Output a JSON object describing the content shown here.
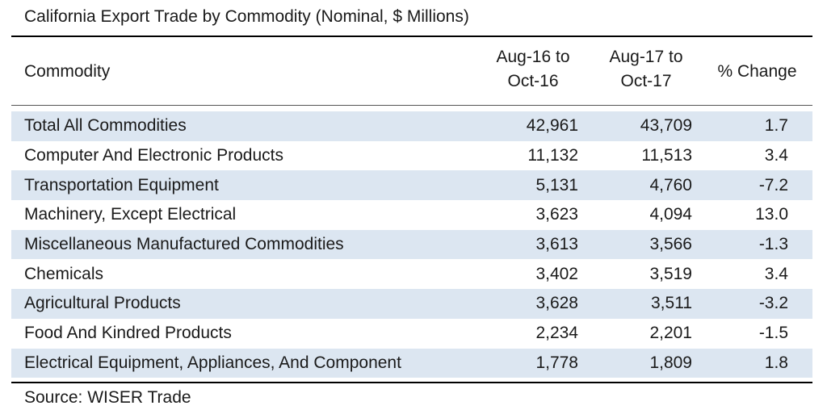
{
  "title": "California Export Trade by Commodity (Nominal, $ Millions)",
  "source": "Source: WISER Trade",
  "colors": {
    "row_shade": "#dce6f1",
    "rule": "#000000"
  },
  "chart_data": {
    "type": "table",
    "title": "California Export Trade by Commodity (Nominal, $ Millions)",
    "columns": {
      "commodity": "Commodity",
      "period1_line1": "Aug-16 to",
      "period1_line2": "Oct-16",
      "period2_line1": "Aug-17 to",
      "period2_line2": "Oct-17",
      "change": "% Change"
    },
    "rows": [
      {
        "commodity": "Total All Commodities",
        "aug16_oct16": "42,961",
        "aug17_oct17": "43,709",
        "pct_change": "1.7"
      },
      {
        "commodity": "Computer And Electronic Products",
        "aug16_oct16": "11,132",
        "aug17_oct17": "11,513",
        "pct_change": "3.4"
      },
      {
        "commodity": "Transportation Equipment",
        "aug16_oct16": "5,131",
        "aug17_oct17": "4,760",
        "pct_change": "-7.2"
      },
      {
        "commodity": "Machinery, Except Electrical",
        "aug16_oct16": "3,623",
        "aug17_oct17": "4,094",
        "pct_change": "13.0"
      },
      {
        "commodity": "Miscellaneous Manufactured Commodities",
        "aug16_oct16": "3,613",
        "aug17_oct17": "3,566",
        "pct_change": "-1.3"
      },
      {
        "commodity": "Chemicals",
        "aug16_oct16": "3,402",
        "aug17_oct17": "3,519",
        "pct_change": "3.4"
      },
      {
        "commodity": "Agricultural Products",
        "aug16_oct16": "3,628",
        "aug17_oct17": "3,511",
        "pct_change": "-3.2"
      },
      {
        "commodity": "Food And Kindred Products",
        "aug16_oct16": "2,234",
        "aug17_oct17": "2,201",
        "pct_change": "-1.5"
      },
      {
        "commodity": "Electrical Equipment, Appliances, And Component",
        "aug16_oct16": "1,778",
        "aug17_oct17": "1,809",
        "pct_change": "1.8"
      }
    ]
  }
}
